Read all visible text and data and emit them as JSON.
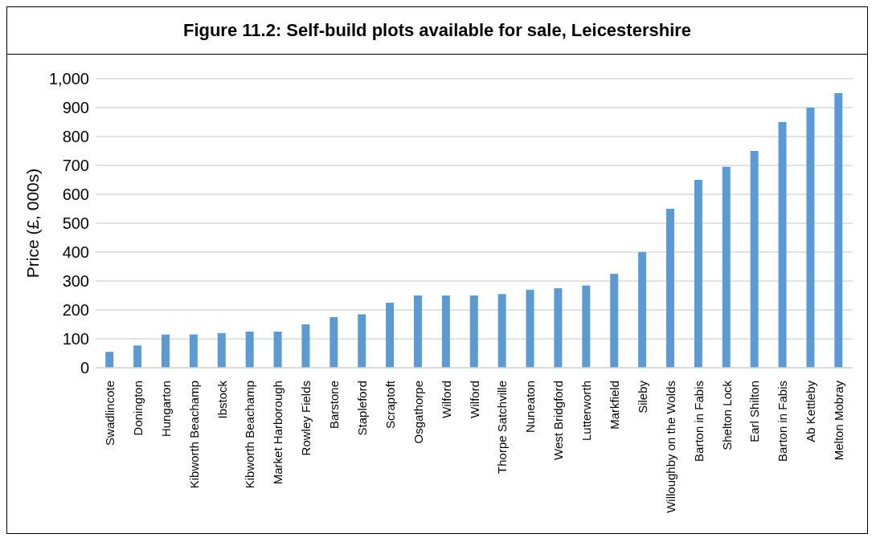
{
  "chart_data": {
    "type": "bar",
    "title": "Figure 11.2: Self-build plots available for sale, Leicestershire",
    "ylabel": "Price (£, 000s)",
    "categories": [
      "Swadlincote",
      "Donington",
      "Hungarton",
      "Kibworth Beachamp",
      "Ibstock",
      "Kibworth Beachamp",
      "Market Harborough",
      "Rowley Fields",
      "Barstone",
      "Stapleford",
      "Scraptoft",
      "Osgathorpe",
      "Wilford",
      "Wilford",
      "Thorpe Satchville",
      "Nuneaton",
      "West Bridgford",
      "Lutterworth",
      "Markfield",
      "Sileby",
      "Willoughby on the Wolds",
      "Barton in Fabis",
      "Shelton Lock",
      "Earl Shilton",
      "Barton in Fabis",
      "Ab Kettleby",
      "Melton Mobray"
    ],
    "values": [
      55,
      77,
      115,
      115,
      120,
      125,
      125,
      150,
      175,
      185,
      225,
      250,
      250,
      250,
      255,
      270,
      275,
      285,
      325,
      400,
      550,
      650,
      695,
      750,
      850,
      900,
      950
    ],
    "color": "#5b9bd5",
    "ylim": [
      0,
      1000
    ],
    "yticks": [
      0,
      100,
      200,
      300,
      400,
      500,
      600,
      700,
      800,
      900,
      {
        "value": 1000,
        "label": "1,000"
      }
    ],
    "grid": "y"
  }
}
